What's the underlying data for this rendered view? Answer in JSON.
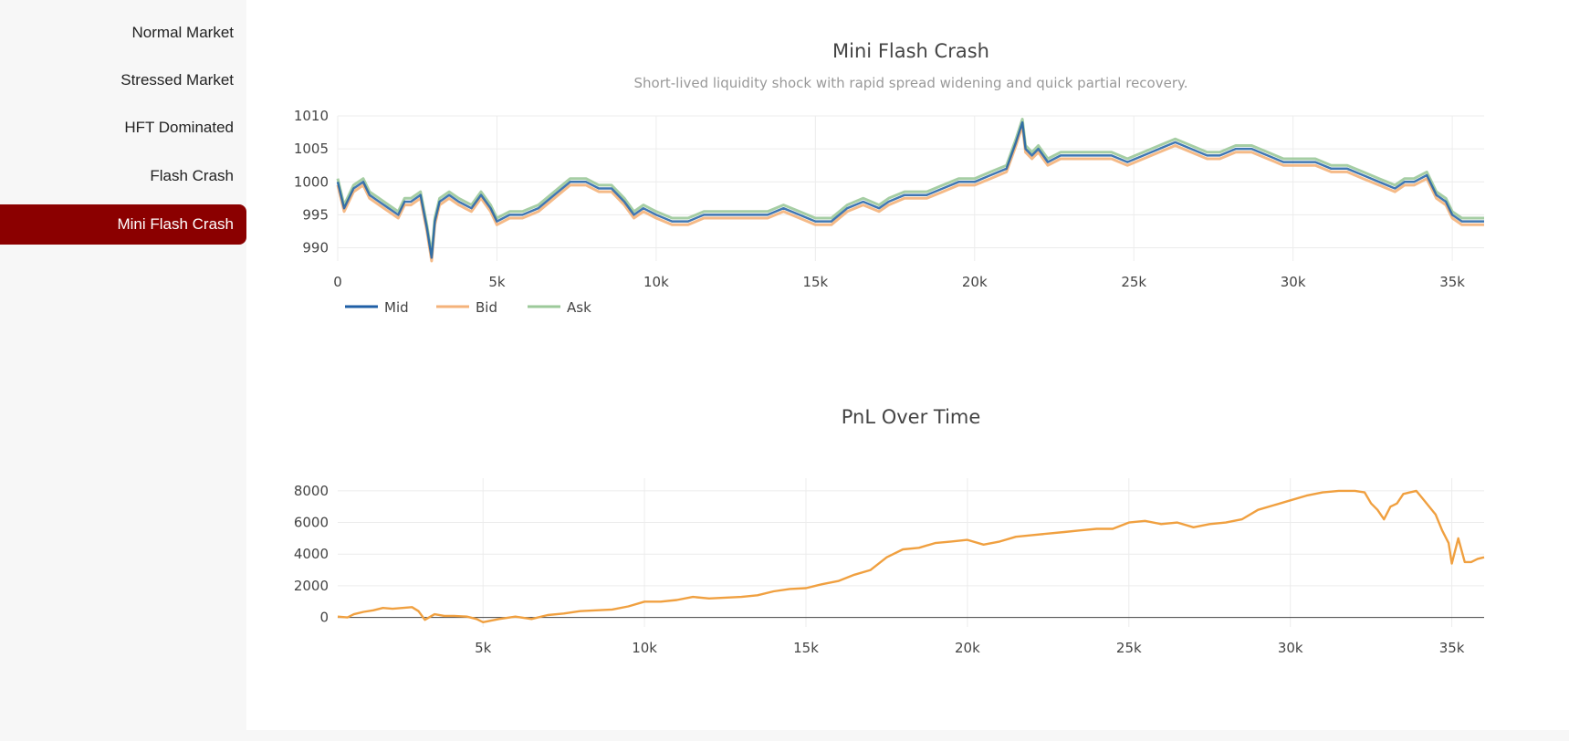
{
  "sidebar": {
    "items": [
      {
        "label": "Normal Market",
        "active": false
      },
      {
        "label": "Stressed Market",
        "active": false
      },
      {
        "label": "HFT Dominated",
        "active": false
      },
      {
        "label": "Flash Crash",
        "active": false
      },
      {
        "label": "Mini Flash Crash",
        "active": true
      }
    ],
    "active_color": "#8b0000"
  },
  "chart_data": [
    {
      "type": "line",
      "title": "Mini Flash Crash",
      "subtitle": "Short-lived liquidity shock with rapid spread widening and quick partial recovery.",
      "xlabel": "",
      "ylabel": "",
      "xlim": [
        0,
        36000
      ],
      "ylim": [
        988,
        1010
      ],
      "xticks": [
        0,
        5000,
        10000,
        15000,
        20000,
        25000,
        30000,
        35000
      ],
      "xtick_labels": [
        "0",
        "5k",
        "10k",
        "15k",
        "20k",
        "25k",
        "30k",
        "35k"
      ],
      "yticks": [
        990,
        995,
        1000,
        1005,
        1010
      ],
      "ytick_labels": [
        "990",
        "995",
        "1000",
        "1005",
        "1010"
      ],
      "grid": true,
      "legend": "bottom-left",
      "x": [
        0,
        200,
        500,
        800,
        1000,
        1300,
        1600,
        1900,
        2100,
        2300,
        2600,
        2800,
        2950,
        3050,
        3200,
        3500,
        3800,
        4200,
        4500,
        4800,
        5000,
        5400,
        5800,
        6300,
        6800,
        7300,
        7800,
        8200,
        8600,
        9000,
        9300,
        9600,
        10000,
        10500,
        11000,
        11500,
        12000,
        12500,
        13000,
        13500,
        14000,
        14500,
        15000,
        15500,
        16000,
        16500,
        17000,
        17300,
        17800,
        18500,
        19000,
        19500,
        20000,
        20500,
        21000,
        21300,
        21500,
        21600,
        21800,
        22000,
        22300,
        22700,
        23200,
        23800,
        24300,
        24800,
        25300,
        25800,
        26300,
        26800,
        27300,
        27700,
        28200,
        28700,
        29200,
        29700,
        30200,
        30700,
        31200,
        31700,
        32200,
        32700,
        33200,
        33500,
        33800,
        34200,
        34500,
        34800,
        35000,
        35300,
        35600,
        36000
      ],
      "series": [
        {
          "name": "Mid",
          "color": "#1f5fa6",
          "values": [
            1000,
            996,
            999,
            1000,
            998,
            997,
            996,
            995,
            997,
            997,
            998,
            993,
            988.5,
            994,
            997,
            998,
            997,
            996,
            998,
            996,
            994,
            995,
            995,
            996,
            998,
            1000,
            1000,
            999,
            999,
            997,
            995,
            996,
            995,
            994,
            994,
            995,
            995,
            995,
            995,
            995,
            996,
            995,
            994,
            994,
            996,
            997,
            996,
            997,
            998,
            998,
            999,
            1000,
            1000,
            1001,
            1002,
            1006,
            1009,
            1005,
            1004,
            1005,
            1003,
            1004,
            1004,
            1004,
            1004,
            1003,
            1004,
            1005,
            1006,
            1005,
            1004,
            1004,
            1005,
            1005,
            1004,
            1003,
            1003,
            1003,
            1002,
            1002,
            1001,
            1000,
            999,
            1000,
            1000,
            1001,
            998,
            997,
            995,
            994,
            994,
            994
          ]
        },
        {
          "name": "Bid",
          "color": "#f4b27a",
          "values": [
            999.5,
            995.5,
            998.5,
            999.5,
            997.5,
            996.5,
            995.5,
            994.5,
            996.5,
            996.5,
            997.5,
            992.5,
            988,
            993.5,
            996.5,
            997.5,
            996.5,
            995.5,
            997.5,
            995.5,
            993.5,
            994.5,
            994.5,
            995.5,
            997.5,
            999.5,
            999.5,
            998.5,
            998.5,
            996.5,
            994.5,
            995.5,
            994.5,
            993.5,
            993.5,
            994.5,
            994.5,
            994.5,
            994.5,
            994.5,
            995.5,
            994.5,
            993.5,
            993.5,
            995.5,
            996.5,
            995.5,
            996.5,
            997.5,
            997.5,
            998.5,
            999.5,
            999.5,
            1000.5,
            1001.5,
            1005.5,
            1008.5,
            1004.5,
            1003.5,
            1004.5,
            1002.5,
            1003.5,
            1003.5,
            1003.5,
            1003.5,
            1002.5,
            1003.5,
            1004.5,
            1005.5,
            1004.5,
            1003.5,
            1003.5,
            1004.5,
            1004.5,
            1003.5,
            1002.5,
            1002.5,
            1002.5,
            1001.5,
            1001.5,
            1000.5,
            999.5,
            998.5,
            999.5,
            999.5,
            1000.5,
            997.5,
            996.5,
            994.5,
            993.5,
            993.5,
            993.5
          ]
        },
        {
          "name": "Ask",
          "color": "#9cc99a",
          "values": [
            1000.5,
            996.5,
            999.5,
            1000.5,
            998.5,
            997.5,
            996.5,
            995.5,
            997.5,
            997.5,
            998.5,
            993.5,
            989,
            994.5,
            997.5,
            998.5,
            997.5,
            996.5,
            998.5,
            996.5,
            994.5,
            995.5,
            995.5,
            996.5,
            998.5,
            1000.5,
            1000.5,
            999.5,
            999.5,
            997.5,
            995.5,
            996.5,
            995.5,
            994.5,
            994.5,
            995.5,
            995.5,
            995.5,
            995.5,
            995.5,
            996.5,
            995.5,
            994.5,
            994.5,
            996.5,
            997.5,
            996.5,
            997.5,
            998.5,
            998.5,
            999.5,
            1000.5,
            1000.5,
            1001.5,
            1002.5,
            1006.5,
            1009.5,
            1005.5,
            1004.5,
            1005.5,
            1003.5,
            1004.5,
            1004.5,
            1004.5,
            1004.5,
            1003.5,
            1004.5,
            1005.5,
            1006.5,
            1005.5,
            1004.5,
            1004.5,
            1005.5,
            1005.5,
            1004.5,
            1003.5,
            1003.5,
            1003.5,
            1002.5,
            1002.5,
            1001.5,
            1000.5,
            999.5,
            1000.5,
            1000.5,
            1001.5,
            998.5,
            997.5,
            995.5,
            994.5,
            994.5,
            994.5
          ]
        }
      ]
    },
    {
      "type": "line",
      "title": "PnL Over Time",
      "xlabel": "",
      "ylabel": "",
      "xlim": [
        500,
        36000
      ],
      "ylim": [
        -600,
        8800
      ],
      "xticks": [
        5000,
        10000,
        15000,
        20000,
        25000,
        30000,
        35000
      ],
      "xtick_labels": [
        "5k",
        "10k",
        "15k",
        "20k",
        "25k",
        "30k",
        "35k"
      ],
      "yticks": [
        0,
        2000,
        4000,
        6000,
        8000
      ],
      "ytick_labels": [
        "0",
        "2000",
        "4000",
        "6000",
        "8000"
      ],
      "grid": true,
      "zero_line": true,
      "series": [
        {
          "name": "PnL",
          "color": "#f0a040",
          "x": [
            500,
            800,
            1000,
            1300,
            1600,
            1900,
            2200,
            2500,
            2800,
            3000,
            3200,
            3500,
            3800,
            4100,
            4500,
            4800,
            5000,
            5500,
            6000,
            6500,
            7000,
            7500,
            8000,
            8500,
            9000,
            9500,
            10000,
            10500,
            11000,
            11500,
            12000,
            12500,
            13000,
            13500,
            14000,
            14500,
            15000,
            15500,
            16000,
            16500,
            17000,
            17500,
            18000,
            18500,
            19000,
            19500,
            20000,
            20500,
            21000,
            21500,
            22000,
            22500,
            23000,
            23500,
            24000,
            24500,
            25000,
            25500,
            26000,
            26500,
            27000,
            27500,
            28000,
            28500,
            29000,
            29500,
            30000,
            30500,
            31000,
            31500,
            32000,
            32300,
            32500,
            32700,
            32900,
            33100,
            33300,
            33500,
            33700,
            33900,
            34100,
            34300,
            34500,
            34700,
            34900,
            35000,
            35200,
            35400,
            35600,
            35800,
            36000
          ],
          "values": [
            50,
            0,
            200,
            350,
            450,
            600,
            550,
            600,
            650,
            400,
            -150,
            200,
            100,
            100,
            50,
            -100,
            -300,
            -100,
            50,
            -100,
            150,
            250,
            400,
            450,
            500,
            700,
            1000,
            1000,
            1100,
            1300,
            1200,
            1250,
            1300,
            1400,
            1650,
            1800,
            1850,
            2100,
            2300,
            2700,
            3000,
            3800,
            4300,
            4400,
            4700,
            4800,
            4900,
            4600,
            4800,
            5100,
            5200,
            5300,
            5400,
            5500,
            5600,
            5600,
            6000,
            6100,
            5900,
            6000,
            5700,
            5900,
            6000,
            6200,
            6800,
            7100,
            7400,
            7700,
            7900,
            8000,
            8000,
            7900,
            7200,
            6800,
            6200,
            7000,
            7200,
            7800,
            7900,
            8000,
            7500,
            7000,
            6500,
            5500,
            4700,
            3400,
            5000,
            3500,
            3500,
            3700,
            3800
          ]
        }
      ]
    }
  ]
}
